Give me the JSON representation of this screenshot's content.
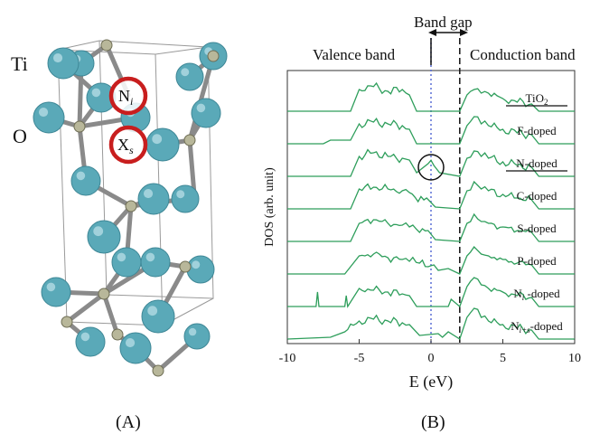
{
  "panel_a": {
    "caption": "(A)",
    "atom_labels": {
      "ti": "Ti",
      "o": "O"
    },
    "site_labels": {
      "interstitial": "N",
      "interstitial_sub": "i",
      "substitutional": "X",
      "substitutional_sub": "s"
    },
    "colors": {
      "ti_atom": "#5aa9b8",
      "o_atom": "#b8b79a",
      "bond": "#8a8a8a",
      "marker": "#c81e1e"
    }
  },
  "panel_b": {
    "caption": "(B)"
  },
  "chart_data": {
    "type": "line",
    "title": "",
    "xlabel": "E (eV)",
    "ylabel": "DOS (arb. unit)",
    "xlim": [
      -10,
      10
    ],
    "xticks": [
      "-10",
      "-5",
      "0",
      "5",
      "10"
    ],
    "ylim": [
      0,
      8
    ],
    "grid": false,
    "line_color": "#2e9e5b",
    "annotations": {
      "band_gap": "Band gap",
      "valence_band": "Valence band",
      "conduction_band": "Conduction band",
      "fermi_level_x": 0,
      "cbm_x": 2.0,
      "circle_label_series": "N-doped",
      "circle_x": 0
    },
    "series": [
      {
        "name": "TiO",
        "name_sub": "2",
        "offset": 7,
        "underline": true,
        "x": [
          -10,
          -5.6,
          -5.0,
          -4.2,
          -3.0,
          -2.0,
          -1.5,
          -1.0,
          2.0,
          2.5,
          3.0,
          3.5,
          4.0,
          5.0,
          6.0,
          7.0,
          7.5,
          10
        ],
        "y": [
          0,
          0,
          0.6,
          0.7,
          0.55,
          0.6,
          0.45,
          0,
          0,
          0.45,
          0.6,
          0.5,
          0.5,
          0.35,
          0.25,
          0.2,
          0,
          0
        ]
      },
      {
        "name": "F-doped",
        "offset": 6,
        "underline": false,
        "x": [
          -10,
          -7.5,
          -7.0,
          -5.6,
          -5.0,
          -4.0,
          -3.0,
          -2.0,
          -1.5,
          -1.0,
          2.0,
          2.5,
          3.0,
          3.5,
          4.0,
          5.0,
          6.0,
          7.0,
          7.5,
          10
        ],
        "y": [
          0,
          0,
          0.1,
          0.1,
          0.55,
          0.6,
          0.55,
          0.5,
          0.4,
          0,
          0,
          0.5,
          0.75,
          0.55,
          0.5,
          0.4,
          0.3,
          0.25,
          0,
          0
        ]
      },
      {
        "name": "N-doped",
        "offset": 5,
        "underline": true,
        "x": [
          -10,
          -5.6,
          -5.0,
          -4.0,
          -3.0,
          -2.0,
          -1.5,
          -1.0,
          -0.2,
          0.2,
          0.6,
          2.0,
          2.5,
          3.0,
          3.5,
          4.0,
          5.0,
          6.0,
          7.0,
          7.5,
          10
        ],
        "y": [
          0,
          0,
          0.55,
          0.65,
          0.55,
          0.5,
          0.45,
          0.1,
          0.35,
          0.3,
          0.1,
          0,
          0.5,
          0.7,
          0.55,
          0.5,
          0.4,
          0.3,
          0.25,
          0,
          0
        ]
      },
      {
        "name": "C-doped",
        "offset": 4,
        "underline": false,
        "x": [
          -10,
          -5.6,
          -5.0,
          -4.0,
          -3.0,
          -2.0,
          -1.5,
          -0.9,
          -0.3,
          0.3,
          2.0,
          2.5,
          3.0,
          3.5,
          4.0,
          5.0,
          6.0,
          7.0,
          7.5,
          10
        ],
        "y": [
          0,
          0,
          0.55,
          0.6,
          0.55,
          0.5,
          0.45,
          0.2,
          0.3,
          0.05,
          0,
          0.5,
          0.75,
          0.55,
          0.5,
          0.4,
          0.3,
          0.25,
          0,
          0
        ]
      },
      {
        "name": "S-doped",
        "offset": 3,
        "underline": false,
        "x": [
          -10,
          -5.6,
          -5.0,
          -4.0,
          -3.0,
          -2.0,
          -1.5,
          -0.8,
          -0.2,
          0.3,
          2.0,
          2.5,
          3.0,
          3.5,
          4.0,
          5.0,
          6.0,
          7.0,
          7.5,
          10
        ],
        "y": [
          0,
          0,
          0.5,
          0.6,
          0.5,
          0.45,
          0.4,
          0.25,
          0.3,
          0.05,
          0,
          0.5,
          0.75,
          0.55,
          0.5,
          0.4,
          0.3,
          0.25,
          0,
          0
        ]
      },
      {
        "name": "P-doped",
        "offset": 2,
        "underline": false,
        "x": [
          -10,
          -6.0,
          -5.0,
          -4.0,
          -3.0,
          -2.0,
          -1.5,
          -0.8,
          -0.2,
          0.2,
          0.5,
          1.2,
          2.0,
          2.5,
          3.0,
          3.5,
          4.0,
          5.0,
          6.0,
          7.0,
          7.5,
          10
        ],
        "y": [
          0,
          0,
          0.5,
          0.55,
          0.45,
          0.4,
          0.35,
          0.3,
          0.2,
          0.25,
          0.1,
          0.15,
          0,
          0.5,
          0.75,
          0.55,
          0.5,
          0.4,
          0.3,
          0.25,
          0,
          0
        ]
      },
      {
        "name": "N",
        "name_sub": "i",
        "name_suffix": " -doped",
        "offset": 1,
        "underline": false,
        "x": [
          -10,
          -8.0,
          -7.9,
          -7.8,
          -6.0,
          -5.9,
          -5.8,
          -5.0,
          -4.0,
          -3.0,
          -2.0,
          -1.5,
          -1.0,
          1.2,
          1.4,
          2.0,
          2.5,
          3.0,
          3.5,
          4.0,
          5.0,
          6.0,
          7.0,
          7.5,
          10
        ],
        "y": [
          0,
          0,
          0.4,
          0,
          0,
          0.3,
          0,
          0.5,
          0.45,
          0.4,
          0.35,
          0.3,
          0,
          0,
          0.2,
          0,
          0.55,
          0.8,
          0.6,
          0.5,
          0.4,
          0.3,
          0.25,
          0,
          0
        ]
      },
      {
        "name": "N",
        "name_sub": "i+s",
        "name_suffix": "-doped",
        "offset": 0,
        "underline": false,
        "x": [
          -10,
          -7.0,
          -6.0,
          -5.0,
          -4.0,
          -3.0,
          -2.0,
          -1.5,
          -0.8,
          0.5,
          0.8,
          1.2,
          2.0,
          2.5,
          3.0,
          3.5,
          4.0,
          5.0,
          6.0,
          7.0,
          7.5,
          10
        ],
        "y": [
          0,
          0.05,
          0.2,
          0.5,
          0.55,
          0.5,
          0.45,
          0.4,
          0.1,
          0.15,
          0.05,
          0.2,
          0,
          0.6,
          0.85,
          0.6,
          0.5,
          0.4,
          0.3,
          0.25,
          0,
          0
        ]
      }
    ]
  }
}
